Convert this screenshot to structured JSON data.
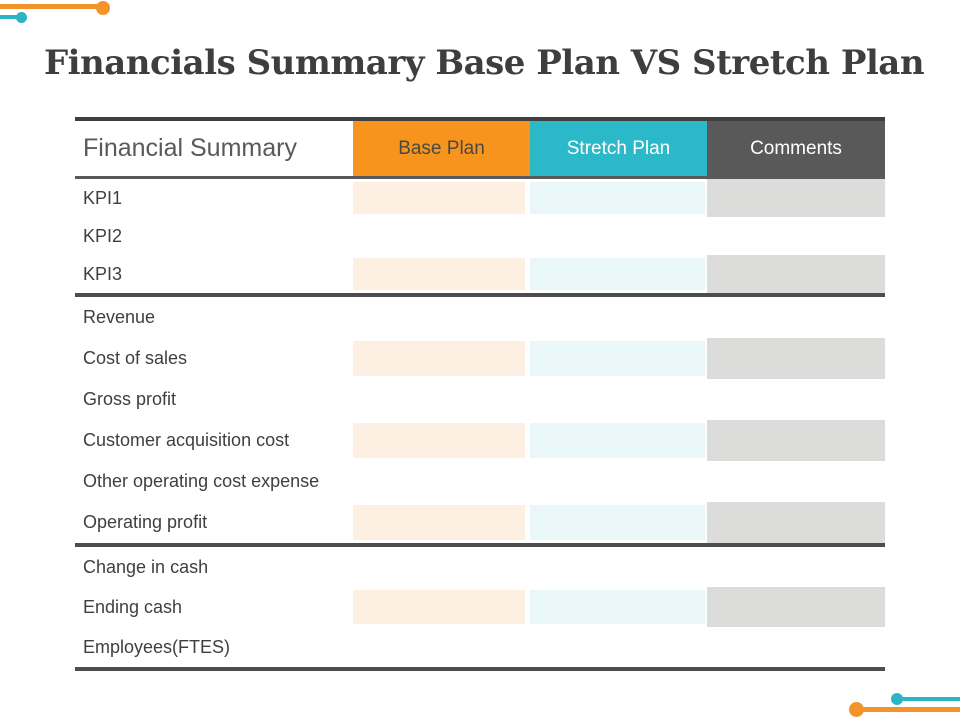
{
  "slide": {
    "title": "Financials Summary Base Plan VS Stretch Plan"
  },
  "table": {
    "header": {
      "financial_summary": "Financial Summary",
      "base_plan": "Base Plan",
      "stretch_plan": "Stretch Plan",
      "comments": "Comments"
    },
    "rows": [
      {
        "label": "KPI1",
        "base_plan": "",
        "stretch_plan": "",
        "comments": ""
      },
      {
        "label": "KPI2",
        "base_plan": "",
        "stretch_plan": "",
        "comments": ""
      },
      {
        "label": "KPI3",
        "base_plan": "",
        "stretch_plan": "",
        "comments": ""
      },
      {
        "label": "Revenue",
        "base_plan": "",
        "stretch_plan": "",
        "comments": ""
      },
      {
        "label": "Cost of sales",
        "base_plan": "",
        "stretch_plan": "",
        "comments": ""
      },
      {
        "label": "Gross profit",
        "base_plan": "",
        "stretch_plan": "",
        "comments": ""
      },
      {
        "label": "Customer acquisition cost",
        "base_plan": "",
        "stretch_plan": "",
        "comments": ""
      },
      {
        "label": "Other operating cost expense",
        "base_plan": "",
        "stretch_plan": "",
        "comments": ""
      },
      {
        "label": "Operating profit",
        "base_plan": "",
        "stretch_plan": "",
        "comments": ""
      },
      {
        "label": "Change in cash",
        "base_plan": "",
        "stretch_plan": "",
        "comments": ""
      },
      {
        "label": "Ending cash",
        "base_plan": "",
        "stretch_plan": "",
        "comments": ""
      },
      {
        "label": "Employees(FTES)",
        "base_plan": "",
        "stretch_plan": "",
        "comments": ""
      }
    ]
  },
  "colors": {
    "orange": "#F7941E",
    "teal": "#2BB9C9",
    "dark_gray": "#595959",
    "orange_tint": "#FDEFE2",
    "teal_tint": "#E9F7F9",
    "gray_tint": "#DCDCDA",
    "title_text": "#3E3E3E"
  }
}
